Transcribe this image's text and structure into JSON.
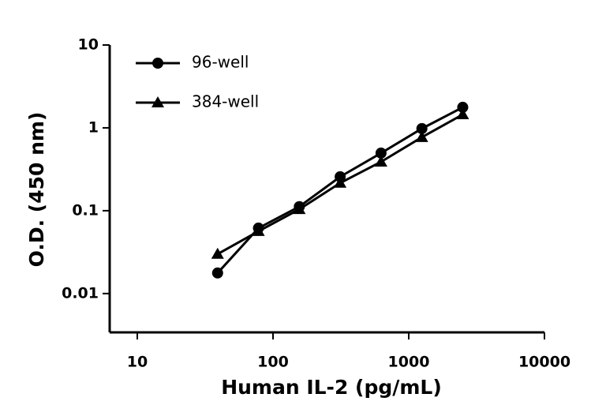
{
  "chart_data": {
    "type": "line",
    "x_label": "Human IL-2 (pg/mL)",
    "y_label": "O.D. (450 nm)",
    "x": [
      39.06,
      78.13,
      156.25,
      312.5,
      625,
      1250,
      2500
    ],
    "series": [
      {
        "name": "96-well",
        "color": "#000000",
        "marker": "circle",
        "values": [
          0.0177,
          0.0617,
          0.112,
          0.257,
          0.496,
          0.98,
          1.77
        ]
      },
      {
        "name": "384-well",
        "color": "#000000",
        "marker": "triangle",
        "values": [
          0.03,
          0.0565,
          0.104,
          0.216,
          0.389,
          0.77,
          1.45
        ]
      }
    ],
    "xlim": [
      6.26,
      10000
    ],
    "xticks": [
      10,
      100,
      1000,
      10000
    ],
    "ylim": [
      0.0034,
      10
    ],
    "yticks": [
      0.01,
      0.1,
      1,
      10
    ],
    "xscale": "log",
    "yscale": "log",
    "grid": false,
    "legend": "top-left"
  }
}
